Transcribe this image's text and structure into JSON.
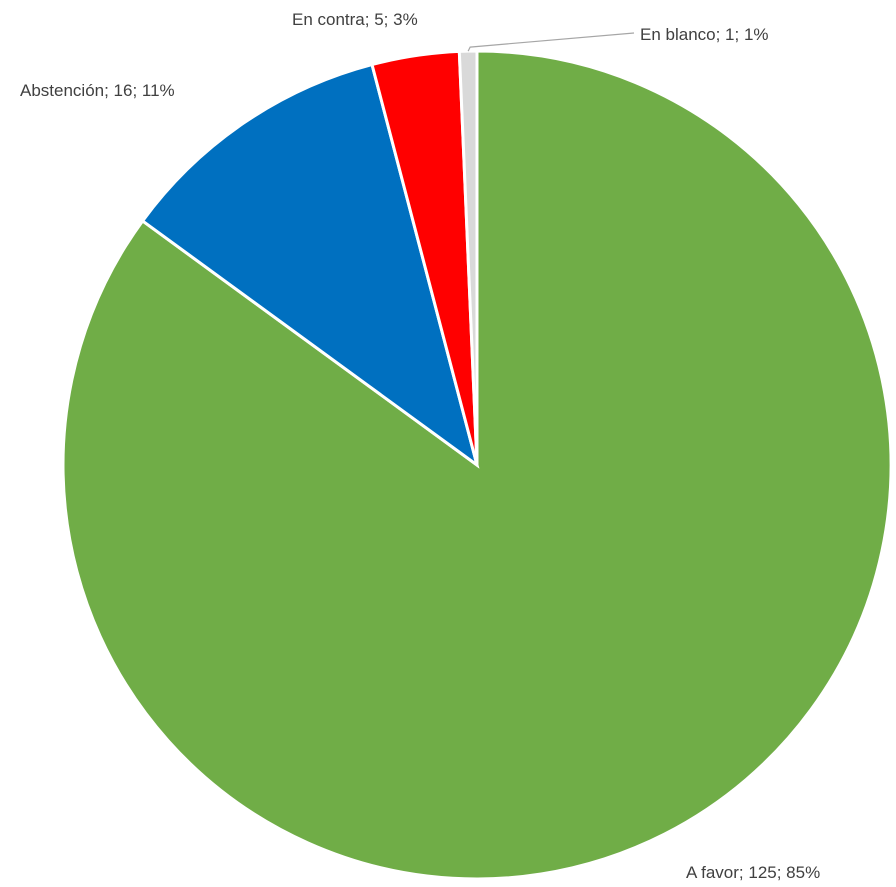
{
  "chart_data": {
    "type": "pie",
    "title": "",
    "start_angle_deg": 0,
    "direction": "clockwise",
    "slices": [
      {
        "name": "A favor",
        "value": 125,
        "percent": "85%",
        "label": "A favor; 125; 85%",
        "color": "#70AD47"
      },
      {
        "name": "Abstención",
        "value": 16,
        "percent": "11%",
        "label": "Abstención; 16; 11%",
        "color": "#0070C0"
      },
      {
        "name": "En contra",
        "value": 5,
        "percent": "3%",
        "label": "En contra; 5; 3%",
        "color": "#FF0000"
      },
      {
        "name": "En blanco",
        "value": 1,
        "percent": "1%",
        "label": "En blanco; 1; 1%",
        "color": "#D9D9D9"
      }
    ]
  }
}
